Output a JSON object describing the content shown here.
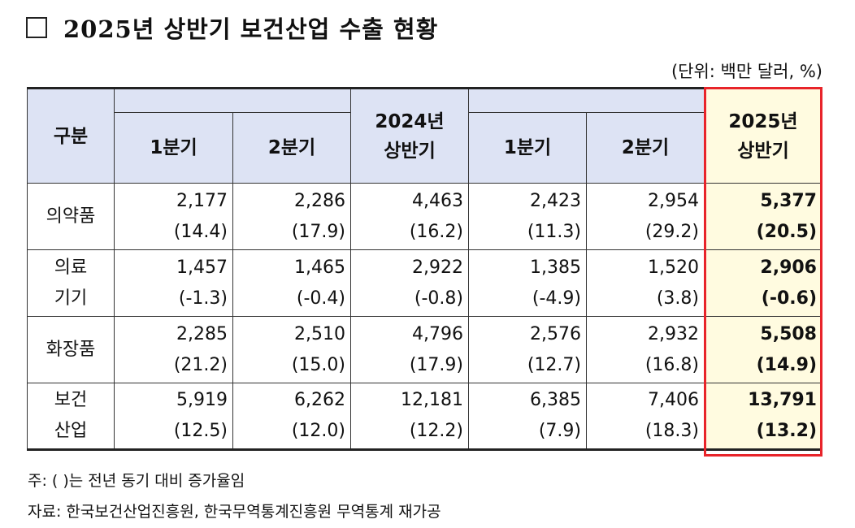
{
  "title": "2025년 상반기 보건산업 수출 현황",
  "unit": "(단위: 백만 달러, %)",
  "header": {
    "category": "구분",
    "q1": "1분기",
    "q2": "2분기",
    "h2024_line1": "2024년",
    "h2024_line2": "상반기",
    "h2025_line1": "2025년",
    "h2025_line2": "상반기"
  },
  "rows": [
    {
      "label_line1": "의약품",
      "label_line2": "",
      "values": [
        "2,177",
        "2,286",
        "4,463",
        "2,423",
        "2,954",
        "5,377"
      ],
      "growth": [
        "(14.4)",
        "(17.9)",
        "(16.2)",
        "(11.3)",
        "(29.2)",
        "(20.5)"
      ]
    },
    {
      "label_line1": "의료",
      "label_line2": "기기",
      "values": [
        "1,457",
        "1,465",
        "2,922",
        "1,385",
        "1,520",
        "2,906"
      ],
      "growth": [
        "(-1.3)",
        "(-0.4)",
        "(-0.8)",
        "(-4.9)",
        "(3.8)",
        "(-0.6)"
      ]
    },
    {
      "label_line1": "화장품",
      "label_line2": "",
      "values": [
        "2,285",
        "2,510",
        "4,796",
        "2,576",
        "2,932",
        "5,508"
      ],
      "growth": [
        "(21.2)",
        "(15.0)",
        "(17.9)",
        "(12.7)",
        "(16.8)",
        "(14.9)"
      ]
    },
    {
      "label_line1": "보건",
      "label_line2": "산업",
      "values": [
        "5,919",
        "6,262",
        "12,181",
        "6,385",
        "7,406",
        "13,791"
      ],
      "growth": [
        "(12.5)",
        "(12.0)",
        "(12.2)",
        "(7.9)",
        "(18.3)",
        "(13.2)"
      ]
    }
  ],
  "notes": {
    "note": "주: (   )는 전년 동기 대비 증가율임",
    "source": "자료: 한국보건산업진흥원, 한국무역통계진흥원 무역통계 재가공"
  },
  "colors": {
    "header_bg": "#dde3f4",
    "highlight_bg": "#fffbe0",
    "highlight_border": "#e8242a"
  }
}
